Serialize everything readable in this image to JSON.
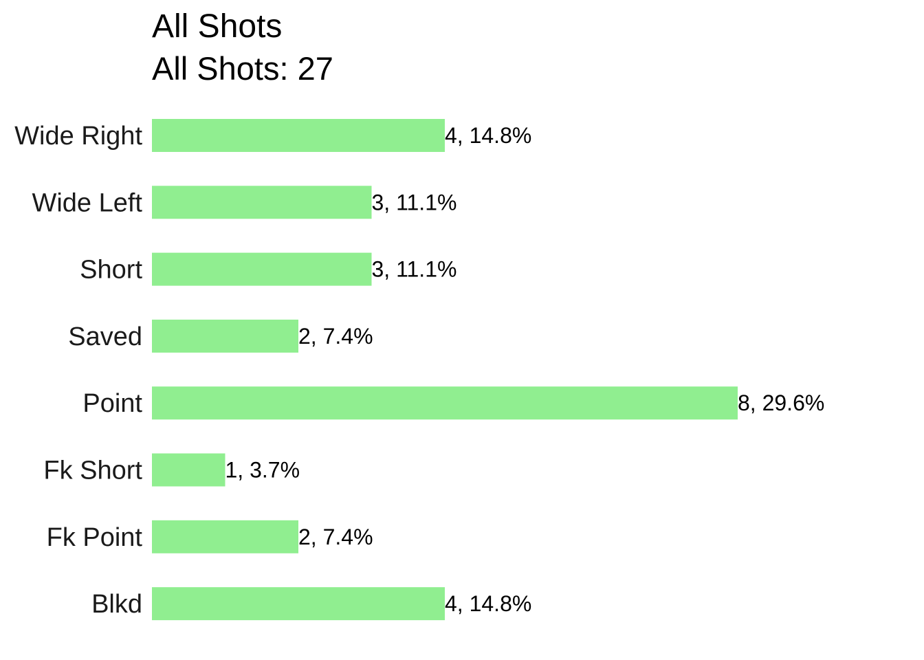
{
  "chart_data": {
    "type": "bar",
    "orientation": "horizontal",
    "title": "All Shots",
    "subtitle": "All Shots: 27",
    "categories": [
      "Wide Right",
      "Wide Left",
      "Short",
      "Saved",
      "Point",
      "Fk Short",
      "Fk Point",
      "Blkd"
    ],
    "values": [
      4,
      3,
      3,
      2,
      8,
      1,
      2,
      4
    ],
    "data_labels": [
      "4, 14.8%",
      "3, 11.1%",
      "3, 11.1%",
      "2, 7.4%",
      "8, 29.6%",
      "1, 3.7%",
      "2, 7.4%",
      "4, 14.8%"
    ],
    "xlim": [
      0,
      8
    ],
    "grid": false,
    "legend": "none",
    "bar_color": "#90EE90"
  }
}
